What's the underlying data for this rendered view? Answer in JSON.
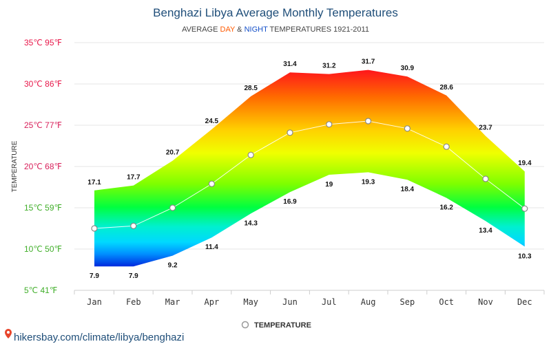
{
  "header": {
    "title": "Benghazi Libya Average Monthly Temperatures",
    "subtitle_prefix": "AVERAGE ",
    "subtitle_day": "DAY",
    "subtitle_amp": " & ",
    "subtitle_night": "NIGHT",
    "subtitle_suffix": " TEMPERATURES 1921-2011"
  },
  "footer": {
    "url": "hikersbay.com/climate/libya/benghazi"
  },
  "colors": {
    "day_accent": "#ff5a00",
    "night_accent": "#1450c8",
    "title": "#1f4e79"
  },
  "chart_data": {
    "type": "area",
    "ylabel": "TEMPERATURE",
    "legend": {
      "label": "TEMPERATURE",
      "position": "bottom-center"
    },
    "ylim": [
      5,
      35
    ],
    "grid": true,
    "yticks": [
      {
        "value": 35,
        "label": "35℃ 95℉",
        "color": "#e8174a"
      },
      {
        "value": 30,
        "label": "30℃ 86℉",
        "color": "#e8174a"
      },
      {
        "value": 25,
        "label": "25℃ 77℉",
        "color": "#d81f5a"
      },
      {
        "value": 20,
        "label": "20℃ 68℉",
        "color": "#d81f5a"
      },
      {
        "value": 15,
        "label": "15℃ 59℉",
        "color": "#3fae28"
      },
      {
        "value": 10,
        "label": "10℃ 50℉",
        "color": "#3fae28"
      },
      {
        "value": 5,
        "label": "5℃ 41℉",
        "color": "#3fae28"
      }
    ],
    "categories": [
      "Jan",
      "Feb",
      "Mar",
      "Apr",
      "May",
      "Jun",
      "Jul",
      "Aug",
      "Sep",
      "Oct",
      "Nov",
      "Dec"
    ],
    "series": [
      {
        "name": "DAY",
        "values": [
          17.1,
          17.7,
          20.7,
          24.5,
          28.5,
          31.4,
          31.2,
          31.7,
          30.9,
          28.6,
          23.7,
          19.4
        ]
      },
      {
        "name": "NIGHT",
        "values": [
          7.9,
          7.9,
          9.2,
          11.4,
          14.3,
          16.9,
          19,
          19.3,
          18.4,
          16.2,
          13.4,
          10.3
        ]
      },
      {
        "name": "TEMPERATURE",
        "values": [
          12.5,
          12.8,
          15.0,
          17.9,
          21.4,
          24.1,
          25.1,
          25.5,
          24.6,
          22.4,
          18.5,
          14.9
        ]
      }
    ]
  }
}
